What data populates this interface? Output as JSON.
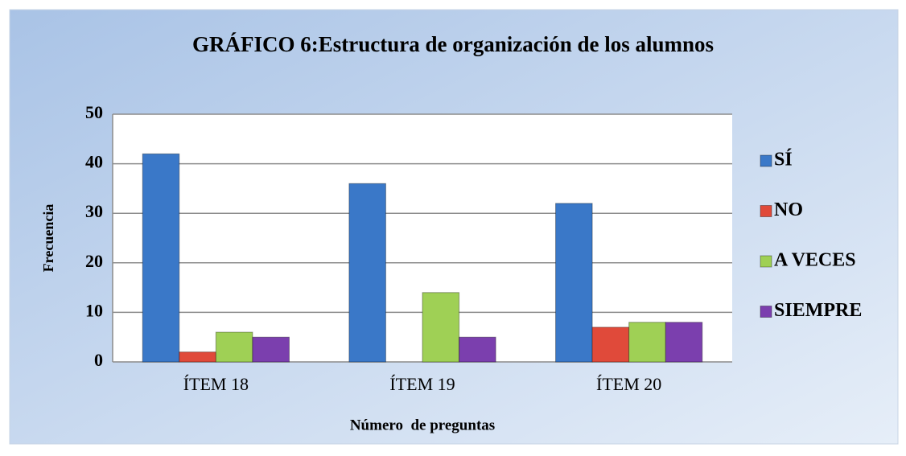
{
  "chart_data": {
    "type": "bar",
    "title": "GRÁFICO 6:Estructura de organización de los alumnos",
    "x_label": "Número  de preguntas",
    "y_label": "Frecuencia",
    "categories": [
      "ÍTEM 18",
      "ÍTEM 19",
      "ÍTEM 20"
    ],
    "series": [
      {
        "name": "SÍ",
        "color": "#3a78c8",
        "values": [
          42,
          36,
          32
        ]
      },
      {
        "name": "NO",
        "color": "#e04a3a",
        "values": [
          2,
          0,
          7
        ]
      },
      {
        "name": "A VECES",
        "color": "#9fd055",
        "values": [
          6,
          14,
          8
        ]
      },
      {
        "name": "SIEMPRE",
        "color": "#7b3fae",
        "values": [
          5,
          5,
          8
        ]
      }
    ],
    "ylim": [
      0,
      50
    ],
    "yticks": [
      0,
      10,
      20,
      30,
      40,
      50
    ],
    "grid": true,
    "legend": "right"
  }
}
